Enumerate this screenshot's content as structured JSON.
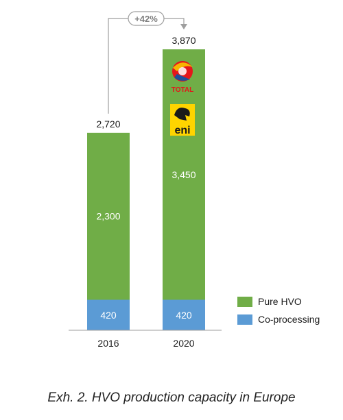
{
  "chart_data": {
    "type": "bar",
    "stacked": true,
    "categories": [
      "2016",
      "2020"
    ],
    "series": [
      {
        "name": "Co-processing",
        "values": [
          420,
          420
        ],
        "color": "#5b9bd5"
      },
      {
        "name": "Pure HVO",
        "values": [
          2300,
          3450
        ],
        "color": "#70ad47"
      }
    ],
    "totals": [
      "2,720",
      "3,870"
    ],
    "segment_labels": {
      "Co-processing": [
        "420",
        "420"
      ],
      "Pure HVO": [
        "2,300",
        "3,450"
      ]
    },
    "ylim": [
      0,
      3870
    ],
    "grid": false,
    "legend_position": "right",
    "growth_annotation": "+42%",
    "logos": [
      "TOTAL",
      "eni"
    ]
  },
  "caption": "Exh. 2. HVO production capacity in Europe"
}
